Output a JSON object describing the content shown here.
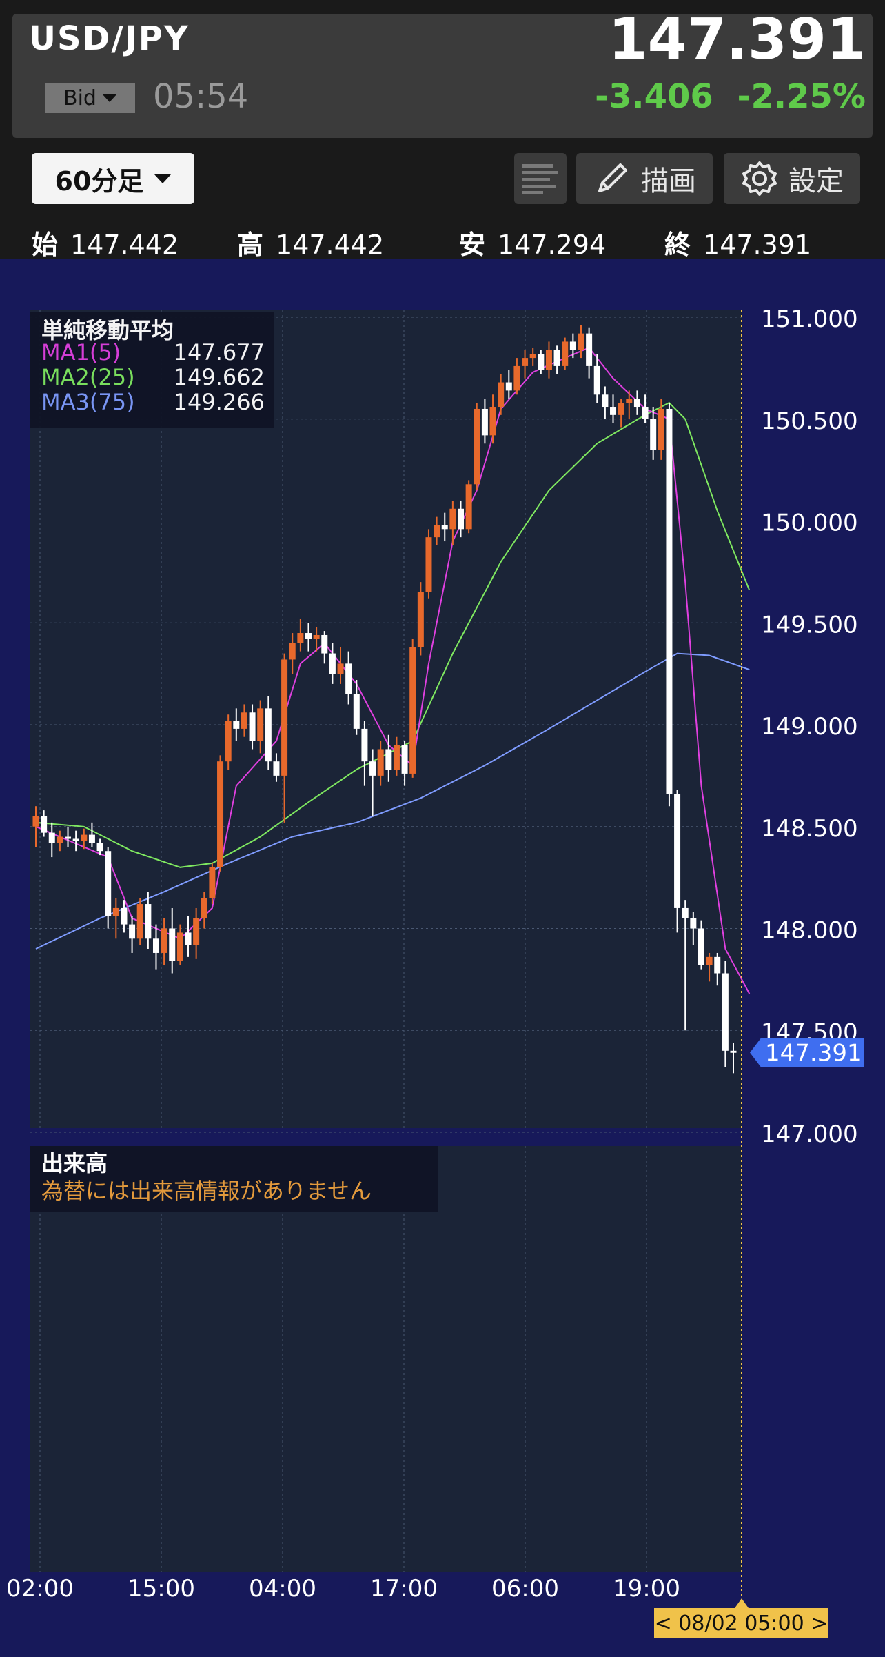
{
  "header": {
    "pair": "USD/JPY",
    "price": "147.391",
    "bid_label": "Bid",
    "time": "05:54",
    "change": "-3.406",
    "change_pct": "-2.25%"
  },
  "toolbar": {
    "timeframe": "60分足",
    "draw_label": "描画",
    "settings_label": "設定"
  },
  "ohlc": {
    "open_label": "始",
    "open": "147.442",
    "high_label": "高",
    "high": "147.442",
    "low_label": "安",
    "low": "147.294",
    "close_label": "終",
    "close": "147.391"
  },
  "ma_legend": {
    "title": "単純移動平均",
    "rows": [
      {
        "name": "MA1(5)",
        "value": "147.677",
        "color": "#e040e0"
      },
      {
        "name": "MA2(25)",
        "value": "149.662",
        "color": "#7fe860"
      },
      {
        "name": "MA3(75)",
        "value": "149.266",
        "color": "#7f9cff"
      }
    ]
  },
  "volume": {
    "title": "出来高",
    "message": "為替には出来高情報がありません"
  },
  "current_price_tag": "147.391",
  "date_badge": "< 08/02 05:00 >",
  "colors": {
    "up": "#e8692c",
    "down": "#ffffff",
    "positive_change": "#5fca4a",
    "ma1": "#e040e0",
    "ma2": "#7fe860",
    "ma3": "#7f9cff",
    "price_tag": "#3f6ef0",
    "date_badge": "#f0c24a"
  },
  "chart_data": {
    "type": "candlestick",
    "y_ticks": [
      "151.000",
      "150.500",
      "150.000",
      "149.500",
      "149.000",
      "148.500",
      "148.000",
      "147.500",
      "147.000"
    ],
    "ylim": [
      147.0,
      151.0
    ],
    "x_ticks": [
      "02:00",
      "15:00",
      "04:00",
      "17:00",
      "06:00",
      "19:00"
    ],
    "ohlc": [
      [
        148.5,
        148.6,
        148.4,
        148.55
      ],
      [
        148.55,
        148.58,
        148.45,
        148.47
      ],
      [
        148.47,
        148.52,
        148.35,
        148.42
      ],
      [
        148.42,
        148.48,
        148.38,
        148.45
      ],
      [
        148.45,
        148.5,
        148.4,
        148.44
      ],
      [
        148.44,
        148.48,
        148.38,
        148.43
      ],
      [
        148.43,
        148.49,
        148.39,
        148.46
      ],
      [
        148.46,
        148.52,
        148.4,
        148.42
      ],
      [
        148.42,
        148.44,
        148.36,
        148.38
      ],
      [
        148.38,
        148.4,
        148.0,
        148.06
      ],
      [
        148.06,
        148.15,
        147.95,
        148.1
      ],
      [
        148.1,
        148.14,
        147.98,
        148.02
      ],
      [
        148.02,
        148.06,
        147.88,
        147.95
      ],
      [
        147.95,
        148.15,
        147.92,
        148.12
      ],
      [
        148.12,
        148.18,
        147.9,
        147.95
      ],
      [
        147.95,
        148.02,
        147.8,
        147.88
      ],
      [
        147.88,
        148.05,
        147.82,
        148.0
      ],
      [
        148.0,
        148.1,
        147.78,
        147.84
      ],
      [
        147.84,
        148.02,
        147.82,
        147.98
      ],
      [
        147.98,
        148.06,
        147.86,
        147.92
      ],
      [
        147.92,
        148.1,
        147.85,
        148.05
      ],
      [
        148.05,
        148.18,
        148.0,
        148.15
      ],
      [
        148.15,
        148.32,
        148.12,
        148.3
      ],
      [
        148.3,
        148.85,
        148.28,
        148.82
      ],
      [
        148.82,
        149.05,
        148.78,
        149.02
      ],
      [
        149.02,
        149.08,
        148.92,
        148.98
      ],
      [
        148.98,
        149.1,
        148.94,
        149.06
      ],
      [
        149.06,
        149.1,
        148.88,
        148.92
      ],
      [
        148.92,
        149.12,
        148.86,
        149.08
      ],
      [
        149.08,
        149.14,
        148.78,
        148.82
      ],
      [
        148.82,
        148.86,
        148.72,
        148.75
      ],
      [
        148.75,
        149.35,
        148.52,
        149.32
      ],
      [
        149.32,
        149.45,
        149.25,
        149.4
      ],
      [
        149.4,
        149.52,
        149.36,
        149.45
      ],
      [
        149.45,
        149.5,
        149.36,
        149.42
      ],
      [
        149.42,
        149.48,
        149.36,
        149.44
      ],
      [
        149.44,
        149.46,
        149.3,
        149.35
      ],
      [
        149.35,
        149.4,
        149.2,
        149.25
      ],
      [
        149.25,
        149.38,
        149.2,
        149.3
      ],
      [
        149.3,
        149.36,
        149.1,
        149.15
      ],
      [
        149.15,
        149.22,
        148.95,
        148.98
      ],
      [
        148.98,
        149.02,
        148.7,
        148.82
      ],
      [
        148.82,
        148.88,
        148.55,
        148.75
      ],
      [
        148.75,
        148.92,
        148.7,
        148.88
      ],
      [
        148.88,
        148.95,
        148.72,
        148.78
      ],
      [
        148.78,
        148.94,
        148.75,
        148.9
      ],
      [
        148.9,
        148.92,
        148.7,
        148.76
      ],
      [
        148.76,
        149.42,
        148.74,
        149.38
      ],
      [
        149.38,
        149.7,
        149.34,
        149.65
      ],
      [
        149.65,
        149.96,
        149.62,
        149.92
      ],
      [
        149.92,
        150.02,
        149.88,
        149.98
      ],
      [
        149.98,
        150.04,
        149.9,
        149.96
      ],
      [
        149.96,
        150.1,
        149.88,
        150.06
      ],
      [
        150.06,
        150.1,
        149.92,
        149.96
      ],
      [
        149.96,
        150.2,
        149.94,
        150.18
      ],
      [
        150.18,
        150.58,
        150.15,
        150.55
      ],
      [
        150.55,
        150.6,
        150.38,
        150.42
      ],
      [
        150.42,
        150.62,
        150.38,
        150.56
      ],
      [
        150.56,
        150.72,
        150.52,
        150.68
      ],
      [
        150.68,
        150.74,
        150.6,
        150.64
      ],
      [
        150.64,
        150.8,
        150.62,
        150.76
      ],
      [
        150.76,
        150.84,
        150.7,
        150.8
      ],
      [
        150.8,
        150.85,
        150.76,
        150.82
      ],
      [
        150.82,
        150.84,
        150.72,
        150.74
      ],
      [
        150.74,
        150.88,
        150.7,
        150.84
      ],
      [
        150.84,
        150.86,
        150.72,
        150.76
      ],
      [
        150.76,
        150.9,
        150.74,
        150.88
      ],
      [
        150.88,
        150.92,
        150.8,
        150.84
      ],
      [
        150.84,
        150.96,
        150.8,
        150.92
      ],
      [
        150.92,
        150.95,
        150.7,
        150.76
      ],
      [
        150.76,
        150.82,
        150.58,
        150.62
      ],
      [
        150.62,
        150.66,
        150.5,
        150.56
      ],
      [
        150.56,
        150.62,
        150.48,
        150.52
      ],
      [
        150.52,
        150.6,
        150.46,
        150.58
      ],
      [
        150.58,
        150.64,
        150.5,
        150.6
      ],
      [
        150.6,
        150.64,
        150.52,
        150.56
      ],
      [
        150.56,
        150.62,
        150.48,
        150.5
      ],
      [
        150.5,
        150.56,
        150.3,
        150.35
      ],
      [
        150.35,
        150.6,
        150.3,
        150.55
      ],
      [
        150.55,
        150.58,
        148.6,
        148.66
      ],
      [
        148.66,
        148.68,
        147.98,
        148.1
      ],
      [
        148.1,
        148.14,
        147.5,
        148.05
      ],
      [
        148.05,
        148.08,
        147.92,
        148.0
      ],
      [
        148.0,
        148.04,
        147.8,
        147.82
      ],
      [
        147.82,
        147.88,
        147.74,
        147.86
      ],
      [
        147.86,
        147.88,
        147.72,
        147.78
      ],
      [
        147.78,
        147.84,
        147.32,
        147.4
      ],
      [
        147.4,
        147.44,
        147.29,
        147.39
      ]
    ],
    "ma1_points": [
      [
        0,
        148.5
      ],
      [
        9,
        148.35
      ],
      [
        12,
        148.05
      ],
      [
        18,
        147.95
      ],
      [
        22,
        148.1
      ],
      [
        25,
        148.7
      ],
      [
        30,
        148.92
      ],
      [
        33,
        149.3
      ],
      [
        36,
        149.4
      ],
      [
        40,
        149.2
      ],
      [
        44,
        148.9
      ],
      [
        47,
        148.8
      ],
      [
        49,
        149.3
      ],
      [
        52,
        149.9
      ],
      [
        55,
        150.15
      ],
      [
        58,
        150.55
      ],
      [
        62,
        150.73
      ],
      [
        66,
        150.8
      ],
      [
        69,
        150.85
      ],
      [
        72,
        150.7
      ],
      [
        76,
        150.55
      ],
      [
        79,
        150.5
      ],
      [
        81,
        149.7
      ],
      [
        83,
        148.7
      ],
      [
        86,
        147.9
      ],
      [
        89,
        147.68
      ]
    ],
    "ma2_points": [
      [
        0,
        148.52
      ],
      [
        6,
        148.5
      ],
      [
        12,
        148.38
      ],
      [
        18,
        148.3
      ],
      [
        22,
        148.32
      ],
      [
        28,
        148.45
      ],
      [
        34,
        148.62
      ],
      [
        40,
        148.78
      ],
      [
        47,
        148.92
      ],
      [
        52,
        149.35
      ],
      [
        58,
        149.8
      ],
      [
        64,
        150.15
      ],
      [
        70,
        150.38
      ],
      [
        76,
        150.52
      ],
      [
        79,
        150.58
      ],
      [
        81,
        150.5
      ],
      [
        85,
        150.05
      ],
      [
        89,
        149.66
      ]
    ],
    "ma3_points": [
      [
        0,
        147.9
      ],
      [
        8,
        148.05
      ],
      [
        16,
        148.18
      ],
      [
        24,
        148.32
      ],
      [
        32,
        148.45
      ],
      [
        40,
        148.52
      ],
      [
        48,
        148.64
      ],
      [
        56,
        148.8
      ],
      [
        64,
        148.98
      ],
      [
        70,
        149.12
      ],
      [
        76,
        149.26
      ],
      [
        80,
        149.35
      ],
      [
        84,
        149.34
      ],
      [
        89,
        149.27
      ]
    ]
  }
}
